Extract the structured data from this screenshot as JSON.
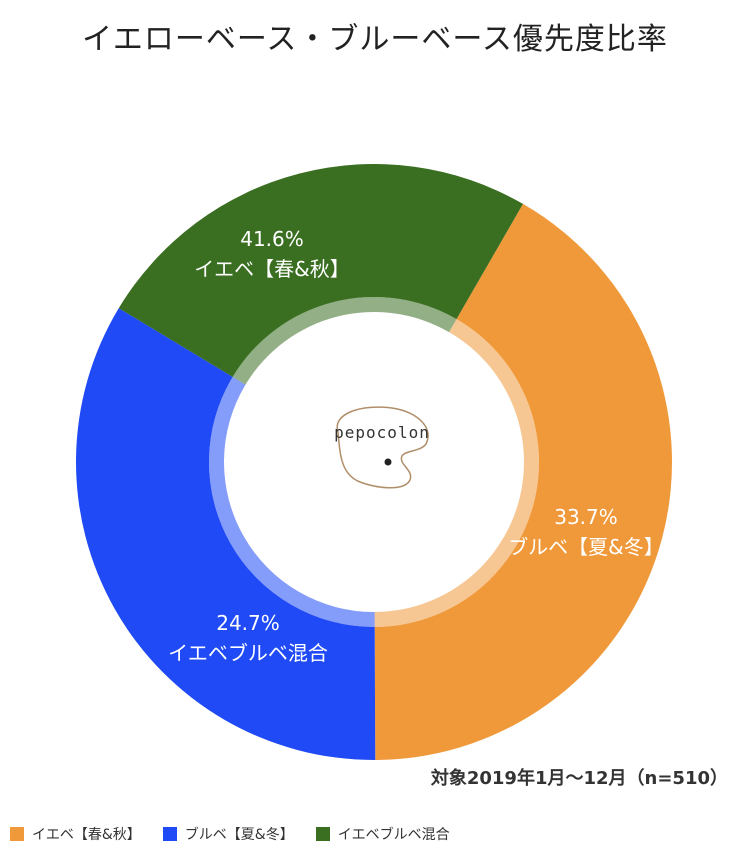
{
  "chart_data": {
    "type": "pie",
    "title": "イエローベース・ブルーベース優先度比率",
    "categories": [
      "イエベ【春&秋】",
      "ブルベ【夏&冬】",
      "イエベブルベ混合"
    ],
    "values": [
      41.6,
      33.7,
      24.7
    ],
    "value_labels": [
      "41.6%",
      "33.7%",
      "24.7%"
    ],
    "colors": [
      "#F0993A",
      "#1F4AF5",
      "#3A6E21"
    ],
    "legend_position": "bottom-left",
    "note": "対象2019年1月〜12月（n=510）"
  },
  "logo_text": "pepocolon"
}
